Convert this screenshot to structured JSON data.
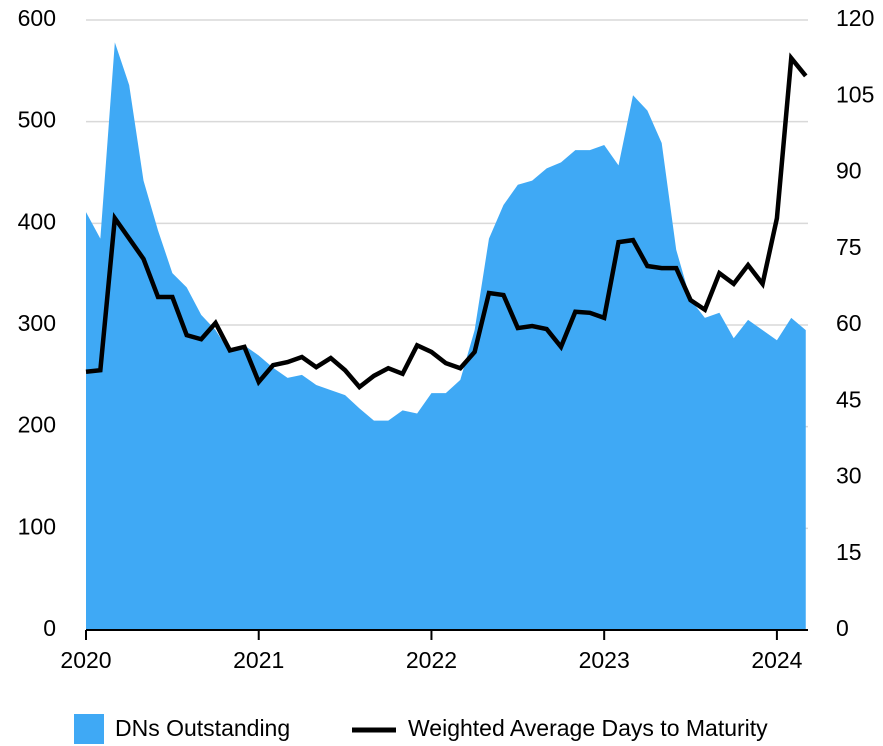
{
  "chart_data": {
    "type": "area_line",
    "x": [
      2020,
      2020.083,
      2020.167,
      2020.25,
      2020.333,
      2020.417,
      2020.5,
      2020.583,
      2020.667,
      2020.75,
      2020.833,
      2020.917,
      2021,
      2021.083,
      2021.167,
      2021.25,
      2021.333,
      2021.417,
      2021.5,
      2021.583,
      2021.667,
      2021.75,
      2021.833,
      2021.917,
      2022,
      2022.083,
      2022.167,
      2022.25,
      2022.333,
      2022.417,
      2022.5,
      2022.583,
      2022.667,
      2022.75,
      2022.833,
      2022.917,
      2023,
      2023.083,
      2023.167,
      2023.25,
      2023.333,
      2023.417,
      2023.5,
      2023.583,
      2023.667,
      2023.75,
      2023.833,
      2023.917,
      2024,
      2024.083,
      2024.167
    ],
    "series": [
      {
        "name": "DNs Outstanding",
        "color": "#3fa9f5",
        "kind": "area",
        "values": [
          411,
          385,
          578,
          536,
          442,
          393,
          351,
          337,
          310,
          295,
          273,
          280,
          270,
          258,
          248,
          251,
          241,
          236,
          231,
          218,
          206,
          206,
          216,
          213,
          233,
          233,
          246,
          295,
          385,
          418,
          438,
          442,
          454,
          460,
          472,
          472,
          477,
          457,
          526,
          511,
          479,
          374,
          325,
          307,
          312,
          287,
          305,
          295,
          285,
          307,
          295
        ]
      },
      {
        "name": "Weighted Average Days to Maturity",
        "color": "#000000",
        "kind": "line",
        "axis": "y2",
        "values": [
          50.8,
          51.1,
          81,
          77,
          73,
          65.5,
          65.5,
          58,
          57.2,
          60.4,
          55,
          55.7,
          48.8,
          52.1,
          52.7,
          53.7,
          51.7,
          53.5,
          51.1,
          47.8,
          50,
          51.5,
          50.4,
          56,
          54.7,
          52.5,
          51.5,
          54.7,
          66.3,
          65.9,
          59.4,
          59.8,
          59.2,
          55.7,
          62.6,
          62.4,
          61.4,
          76.3,
          76.7,
          71.6,
          71.2,
          71.2,
          64.9,
          63,
          70.2,
          68.1,
          71.8,
          68.1,
          81,
          112.5,
          109
        ]
      }
    ],
    "xlim": [
      2020,
      2024.18
    ],
    "xticks": [
      2020,
      2021,
      2022,
      2023,
      2024
    ],
    "ylim": [
      0,
      600
    ],
    "yticks": [
      0,
      100,
      200,
      300,
      400,
      500,
      600
    ],
    "y2lim": [
      0,
      120
    ],
    "y2ticks": [
      0,
      15,
      30,
      45,
      60,
      75,
      90,
      105,
      120
    ],
    "grid": true,
    "legend": "bottom"
  }
}
